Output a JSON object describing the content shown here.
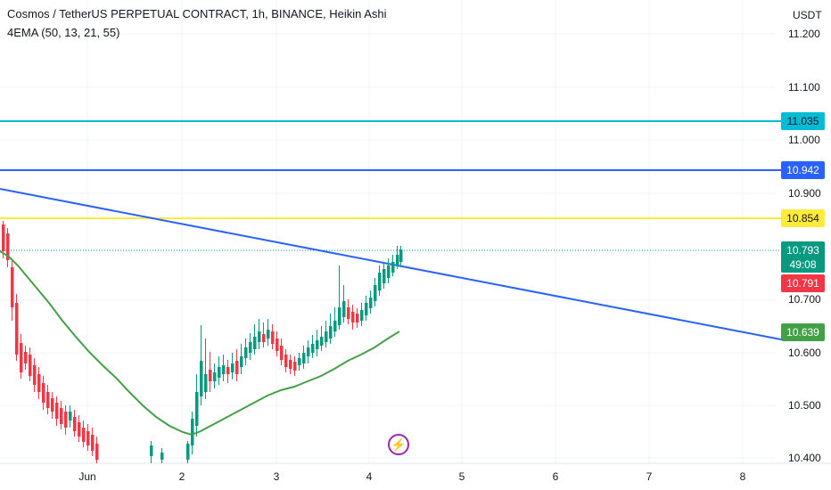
{
  "header": {
    "title": "Cosmos / TetherUS PERPETUAL CONTRACT, 1h, BINANCE, Heikin Ashi",
    "indicator": "4EMA (50, 13, 21, 55)"
  },
  "price_axis": {
    "unit": "USDT",
    "ticks": [
      "11.200",
      "11.100",
      "11.000",
      "10.900",
      "10.700",
      "10.600",
      "10.500",
      "10.400"
    ]
  },
  "time_axis": {
    "ticks": [
      "Jun",
      "2",
      "3",
      "4",
      "5",
      "6",
      "7",
      "8"
    ]
  },
  "price_tags": {
    "level_1": "11.035",
    "level_2": "10.942",
    "level_3": "10.854",
    "last_price": "10.793",
    "countdown": "49:08",
    "bid": "10.791",
    "trendline": "10.639"
  },
  "colors": {
    "level_1": "#00bcd4",
    "level_2": "#2962ff",
    "level_3": "#ffeb3b",
    "trendline": "#2962ff",
    "ema": "#43a047",
    "up": "#089981",
    "down": "#f23645",
    "flash": "#9c27b0"
  },
  "icons": {
    "event": "flash-icon"
  }
}
